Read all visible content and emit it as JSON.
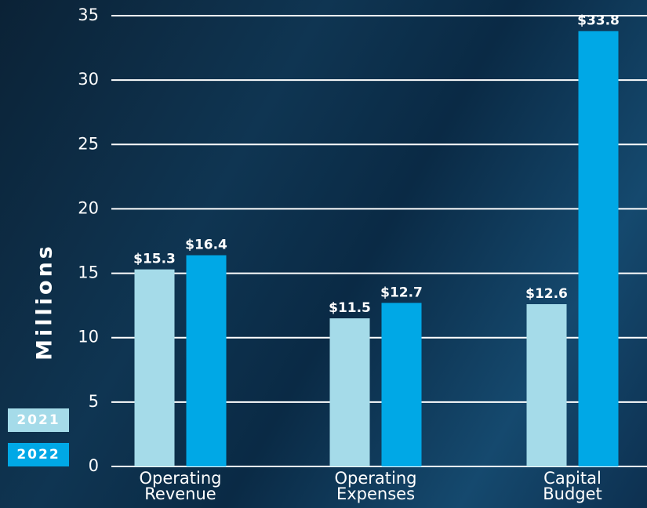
{
  "chart_data": {
    "type": "bar",
    "y_label": "Millions",
    "categories": [
      "Operating Revenue",
      "Operating Expenses",
      "Capital Budget"
    ],
    "series": [
      {
        "name": "2021",
        "color": "#a5dbe9",
        "values": [
          15.3,
          11.5,
          12.6
        ],
        "value_labels": [
          "$15.3",
          "$11.5",
          "$12.6"
        ]
      },
      {
        "name": "2022",
        "color": "#00a8e6",
        "values": [
          16.4,
          12.7,
          33.8
        ],
        "value_labels": [
          "$16.4",
          "$12.7",
          "$33.8"
        ]
      }
    ],
    "ylim": [
      0,
      35
    ],
    "yticks": [
      0,
      5,
      10,
      15,
      20,
      25,
      30,
      35
    ],
    "grid": true
  }
}
